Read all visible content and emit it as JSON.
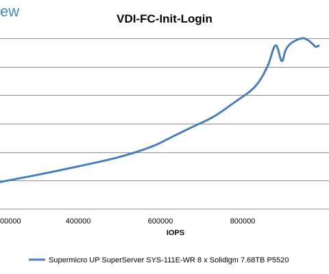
{
  "logo_text": "ew",
  "chart_data": {
    "type": "line",
    "title": "VDI-FC-Init-Login",
    "xlabel": "IOPS",
    "ylabel": "",
    "x_ticks": [
      "400000",
      "600000",
      "800000"
    ],
    "x_tick_values": [
      400000,
      600000,
      800000
    ],
    "x_partial_tick": "00000",
    "xlim": [
      210000,
      1010000
    ],
    "ylim": [
      0,
      6
    ],
    "y_gridlines": [
      1,
      2,
      3,
      4,
      5,
      6
    ],
    "grid": true,
    "legend": "bottom",
    "series": [
      {
        "name": "Supermicro UP SuperServer SYS-111E-WR 8 x Solidigm 7.68TB P5520",
        "color": "#4a7ebb",
        "x": [
          210000,
          300000,
          400000,
          500000,
          580000,
          630000,
          680000,
          730000,
          780000,
          830000,
          860000,
          880000,
          895000,
          905000,
          920000,
          945000,
          960000,
          970000,
          978000,
          985000
        ],
        "y": [
          0.95,
          1.2,
          1.5,
          1.83,
          2.2,
          2.55,
          2.9,
          3.25,
          3.75,
          4.3,
          5.0,
          5.75,
          5.2,
          5.6,
          5.85,
          6.0,
          5.92,
          5.8,
          5.7,
          5.74
        ]
      }
    ]
  }
}
